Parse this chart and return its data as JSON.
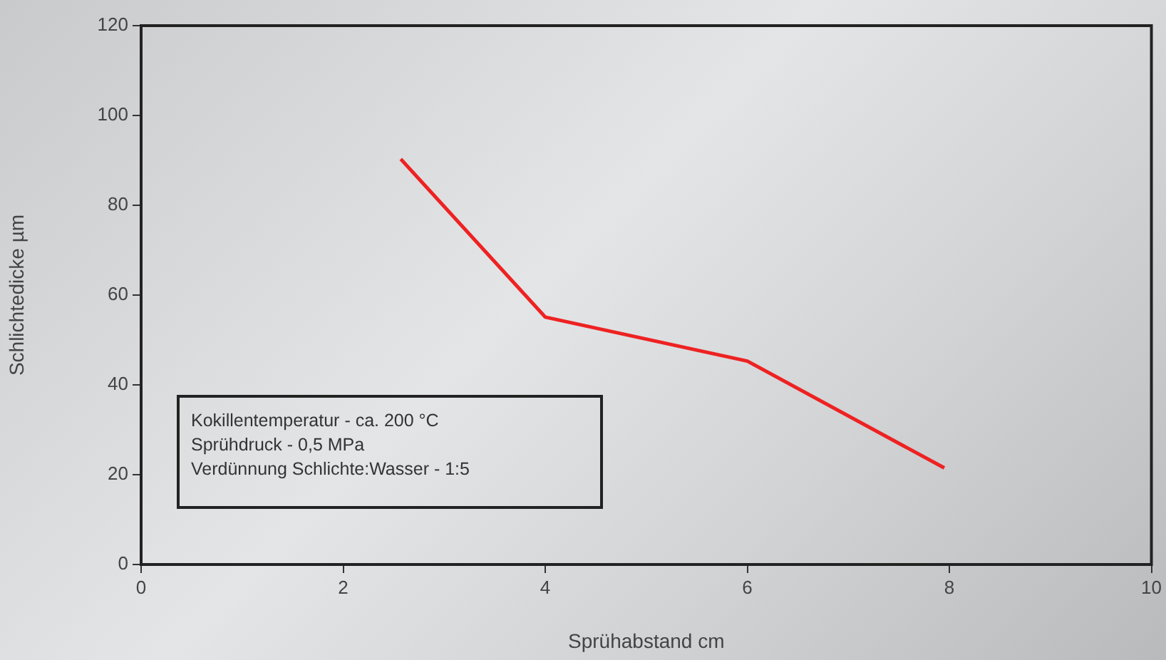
{
  "chart_data": {
    "type": "line",
    "xlabel": "Sprühabstand cm",
    "ylabel": "Schlichtedicke µm",
    "x": [
      2.57,
      4,
      6,
      7.95
    ],
    "series": [
      {
        "color": "#ee2222",
        "values": [
          90.3,
          55.1,
          45.3,
          21.5
        ]
      }
    ],
    "xlim": [
      0,
      10
    ],
    "xticks": [
      0,
      2,
      4,
      6,
      8,
      10
    ],
    "ylim": [
      0,
      120
    ],
    "yticks": [
      0,
      20,
      40,
      60,
      80,
      100,
      120
    ],
    "grid": false,
    "legend": false,
    "marker": "none",
    "line_style": "solid",
    "annotations": [
      "Kokillentemperatur - ca. 200 °C",
      "Sprühdruck - 0,5 MPa",
      "Verdünnung Schlichte:Wasser - 1:5"
    ]
  }
}
